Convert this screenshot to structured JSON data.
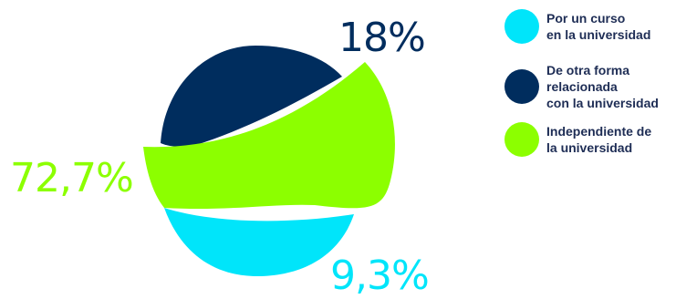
{
  "chart_data": {
    "type": "pie",
    "slices": [
      {
        "label": "Por un curso\nen la universidad",
        "value": 9.3,
        "value_label": "9,3%",
        "color": "#00e5fa"
      },
      {
        "label": "De otra forma\nrelacionada\ncon la universidad",
        "value": 18,
        "value_label": "18%",
        "color": "#002d5e"
      },
      {
        "label": "Independiente de\nla universidad",
        "value": 72.7,
        "value_label": "72,7%",
        "color": "#8cff00"
      }
    ],
    "legend_position": "right"
  }
}
